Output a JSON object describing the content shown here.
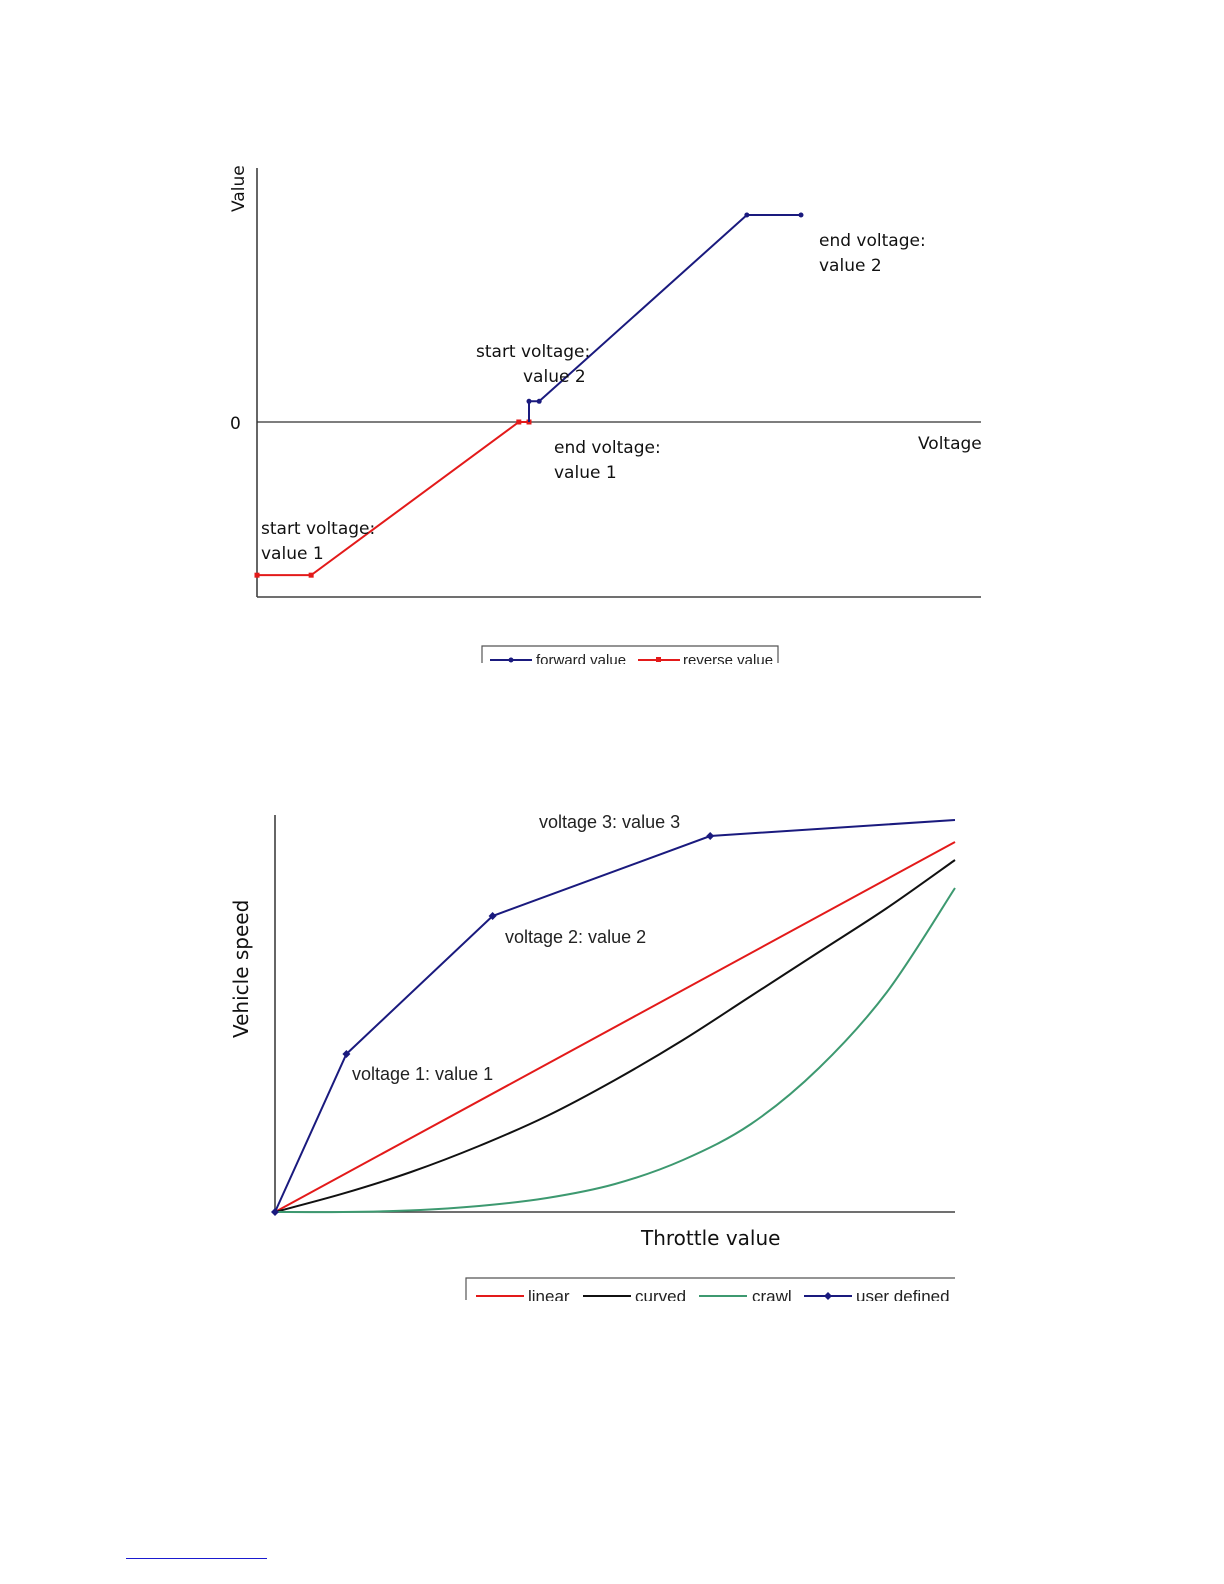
{
  "chart_data": [
    {
      "type": "line",
      "ylabel": "Value",
      "xlabel": "Voltage",
      "yticks": [
        "0"
      ],
      "colors": {
        "forward": "#1a1a7e",
        "reverse": "#e31a1a"
      },
      "series": [
        {
          "name": "forward value",
          "x": [
            0.427,
            0.443,
            0.769,
            0.854
          ],
          "y": [
            0.1,
            0.1,
            1.0,
            1.0
          ]
        },
        {
          "name": "reverse value",
          "x": [
            0.0,
            0.085,
            0.411,
            0.427
          ],
          "y": [
            -0.74,
            -0.74,
            0.0,
            0.0
          ]
        }
      ],
      "forward_connector": {
        "x": [
          0.427,
          0.427
        ],
        "y": [
          0.0,
          0.1
        ]
      },
      "annotations": [
        {
          "text": [
            "start voltage:",
            "value 1"
          ]
        },
        {
          "text": [
            "end voltage:",
            "value 1"
          ]
        },
        {
          "text": [
            "start voltage:",
            "value 2"
          ]
        },
        {
          "text": [
            "end voltage:",
            "value 2"
          ]
        }
      ],
      "legend": {
        "position": "bottom",
        "entries": [
          "forward value",
          "reverse value"
        ]
      }
    },
    {
      "type": "line",
      "ylabel": "Vehicle speed",
      "xlabel": "Throttle value",
      "colors": {
        "linear": "#e31a1a",
        "curved": "#111111",
        "crawl": "#3d9970",
        "user": "#1a1a7e"
      },
      "series": [
        {
          "name": "linear",
          "x": [
            0,
            1
          ],
          "y": [
            0,
            0.925
          ]
        },
        {
          "name": "curved",
          "x": [
            0,
            0.1,
            0.2,
            0.3,
            0.4,
            0.5,
            0.6,
            0.7,
            0.8,
            0.9,
            1.0
          ],
          "y": [
            0,
            0.046,
            0.1,
            0.165,
            0.24,
            0.33,
            0.43,
            0.54,
            0.65,
            0.76,
            0.88
          ]
        },
        {
          "name": "crawl",
          "x": [
            0,
            0.1,
            0.2,
            0.3,
            0.4,
            0.5,
            0.6,
            0.7,
            0.8,
            0.9,
            1.0
          ],
          "y": [
            0,
            0.0,
            0.004,
            0.015,
            0.035,
            0.07,
            0.13,
            0.22,
            0.36,
            0.55,
            0.81
          ]
        },
        {
          "name": "user defined",
          "x": [
            0,
            0.105,
            0.32,
            0.64,
            1.0
          ],
          "y": [
            0,
            0.395,
            0.74,
            0.94,
            0.98
          ]
        }
      ],
      "annotations": [
        {
          "text": "voltage 1: value 1"
        },
        {
          "text": "voltage 2: value 2"
        },
        {
          "text": "voltage 3: value 3"
        }
      ],
      "legend": {
        "position": "bottom",
        "entries": [
          "linear",
          "curved",
          "crawl",
          "user defined"
        ]
      }
    }
  ]
}
